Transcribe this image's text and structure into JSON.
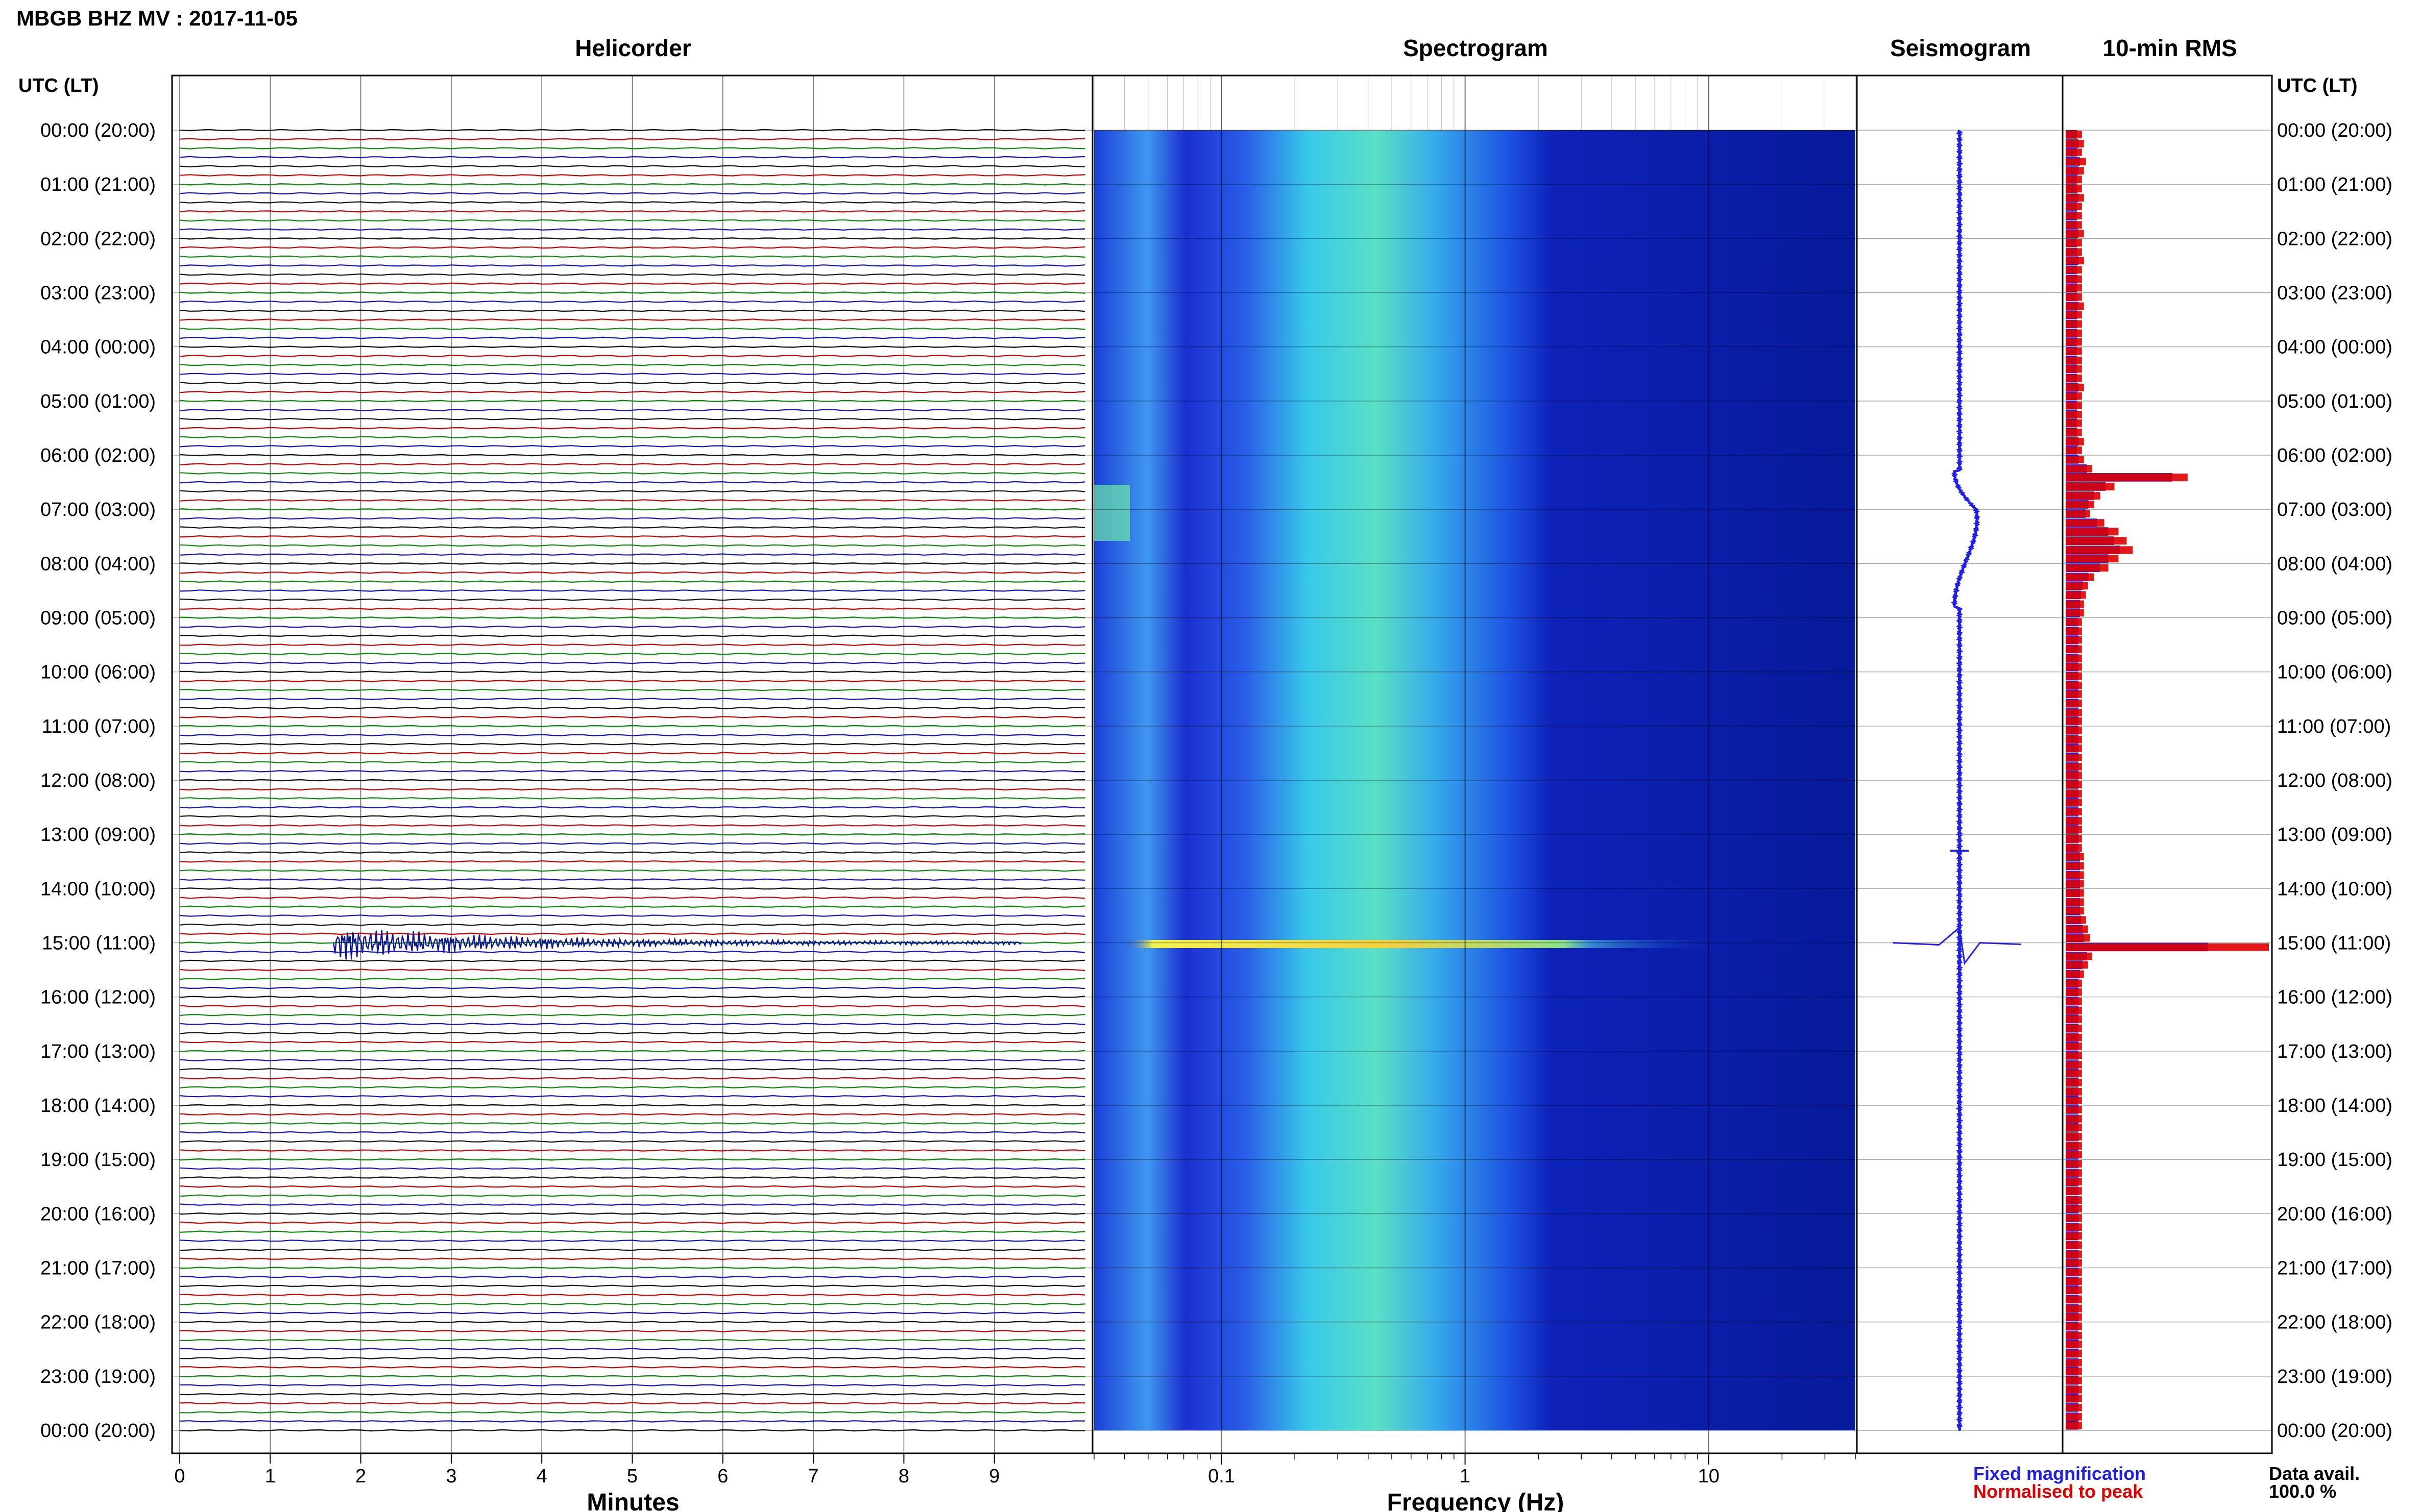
{
  "title": "MBGB BHZ MV : 2017-11-05",
  "panels": {
    "helicorder": "Helicorder",
    "spectrogram": "Spectrogram",
    "seismogram": "Seismogram",
    "rms": "10-min RMS"
  },
  "axis_labels": {
    "time_header_left": "UTC (LT)",
    "time_header_right": "UTC (LT)",
    "helicorder_x": "Minutes",
    "spectrogram_x": "Frequency (Hz)"
  },
  "time_labels": [
    "00:00 (20:00)",
    "01:00 (21:00)",
    "02:00 (22:00)",
    "03:00 (23:00)",
    "04:00 (00:00)",
    "05:00 (01:00)",
    "06:00 (02:00)",
    "07:00 (03:00)",
    "08:00 (04:00)",
    "09:00 (05:00)",
    "10:00 (06:00)",
    "11:00 (07:00)",
    "12:00 (08:00)",
    "13:00 (09:00)",
    "14:00 (10:00)",
    "15:00 (11:00)",
    "16:00 (12:00)",
    "17:00 (13:00)",
    "18:00 (14:00)",
    "19:00 (15:00)",
    "20:00 (16:00)",
    "21:00 (17:00)",
    "22:00 (18:00)",
    "23:00 (19:00)",
    "00:00 (20:00)"
  ],
  "legend": {
    "fixed": "Fixed magnification",
    "normalised": "Normalised to peak",
    "avail_label": "Data avail.",
    "avail_value": "100.0 %"
  },
  "colors": {
    "fixed": "#1f1fe6",
    "normalised": "#e00000",
    "helicorder_traces": [
      "#111111",
      "#cc0000",
      "#0a8a0a",
      "#1111cc"
    ]
  },
  "chart_data": [
    {
      "type": "line",
      "name": "helicorder",
      "xlabel": "Minutes",
      "x_ticks": [
        0,
        1,
        2,
        3,
        4,
        5,
        6,
        7,
        8,
        9
      ],
      "xlim": [
        0,
        10
      ],
      "rows_per_hour": 6,
      "event": {
        "hour": 15.0,
        "start_minute": 1.7,
        "end_minute": 9.3
      }
    },
    {
      "type": "heatmap",
      "name": "spectrogram",
      "xlabel": "Frequency (Hz)",
      "x_scale": "log",
      "xlim": [
        0.03,
        40
      ],
      "x_ticks": [
        0.1,
        1,
        10
      ],
      "hot_bands": [
        {
          "hour": 15.0,
          "fmin": 0.05,
          "fmax": 10
        }
      ]
    },
    {
      "type": "line",
      "name": "seismogram",
      "features": [
        {
          "hour": 6.3,
          "type": "offset"
        },
        {
          "hour": 13.3,
          "type": "spike"
        },
        {
          "hour": 15.0,
          "type": "burst"
        }
      ]
    },
    {
      "type": "bar",
      "name": "10-min RMS",
      "x": [
        0,
        0.17,
        0.33,
        0.5,
        0.67,
        0.83,
        1,
        1.17,
        1.33,
        1.5,
        1.67,
        1.83,
        2,
        2.17,
        2.33,
        2.5,
        2.67,
        2.83,
        3,
        3.17,
        3.33,
        3.5,
        3.67,
        3.83,
        4,
        4.17,
        4.33,
        4.5,
        4.67,
        4.83,
        5,
        5.17,
        5.33,
        5.5,
        5.67,
        5.83,
        6,
        6.17,
        6.33,
        6.5,
        6.67,
        6.83,
        7,
        7.17,
        7.33,
        7.5,
        7.67,
        7.83,
        8,
        8.17,
        8.33,
        8.5,
        8.67,
        8.83,
        9,
        9.17,
        9.33,
        9.5,
        9.67,
        9.83,
        10,
        10.17,
        10.33,
        10.5,
        10.67,
        10.83,
        11,
        11.17,
        11.33,
        11.5,
        11.67,
        11.83,
        12,
        12.17,
        12.33,
        12.5,
        12.67,
        12.83,
        13,
        13.17,
        13.33,
        13.5,
        13.67,
        13.83,
        14,
        14.17,
        14.33,
        14.5,
        14.67,
        14.83,
        15,
        15.17,
        15.33,
        15.5,
        15.67,
        15.83,
        16,
        16.17,
        16.33,
        16.5,
        16.67,
        16.83,
        17,
        17.17,
        17.33,
        17.5,
        17.67,
        17.83,
        18,
        18.17,
        18.33,
        18.5,
        18.67,
        18.83,
        19,
        19.17,
        19.33,
        19.5,
        19.67,
        19.83,
        20,
        20.17,
        20.33,
        20.5,
        20.67,
        20.83,
        21,
        21.17,
        21.33,
        21.5,
        21.67,
        21.83,
        22,
        22.17,
        22.33,
        22.5,
        22.67,
        22.83,
        23,
        23.17,
        23.33,
        23.5,
        23.67,
        23.83
      ],
      "series": [
        {
          "name": "Fixed magnification",
          "values": [
            0.08,
            0.09,
            0.08,
            0.1,
            0.09,
            0.08,
            0.08,
            0.09,
            0.08,
            0.08,
            0.08,
            0.09,
            0.08,
            0.08,
            0.09,
            0.08,
            0.08,
            0.08,
            0.08,
            0.09,
            0.08,
            0.08,
            0.08,
            0.08,
            0.08,
            0.08,
            0.08,
            0.08,
            0.09,
            0.08,
            0.08,
            0.08,
            0.08,
            0.08,
            0.09,
            0.08,
            0.09,
            0.15,
            0.75,
            0.28,
            0.2,
            0.16,
            0.14,
            0.22,
            0.3,
            0.34,
            0.38,
            0.3,
            0.24,
            0.16,
            0.12,
            0.11,
            0.1,
            0.1,
            0.09,
            0.09,
            0.09,
            0.09,
            0.09,
            0.09,
            0.09,
            0.09,
            0.09,
            0.09,
            0.09,
            0.09,
            0.09,
            0.09,
            0.09,
            0.09,
            0.09,
            0.09,
            0.09,
            0.09,
            0.09,
            0.09,
            0.09,
            0.09,
            0.09,
            0.09,
            0.1,
            0.1,
            0.1,
            0.1,
            0.1,
            0.1,
            0.1,
            0.11,
            0.12,
            0.13,
            1.0,
            0.15,
            0.12,
            0.1,
            0.09,
            0.09,
            0.09,
            0.09,
            0.09,
            0.09,
            0.09,
            0.09,
            0.09,
            0.09,
            0.09,
            0.09,
            0.09,
            0.09,
            0.09,
            0.09,
            0.09,
            0.09,
            0.09,
            0.09,
            0.09,
            0.09,
            0.09,
            0.09,
            0.09,
            0.09,
            0.09,
            0.09,
            0.09,
            0.09,
            0.09,
            0.09,
            0.09,
            0.09,
            0.09,
            0.09,
            0.09,
            0.09,
            0.09,
            0.09,
            0.09,
            0.09,
            0.09,
            0.09,
            0.09,
            0.09,
            0.09,
            0.09,
            0.09,
            0.09
          ]
        },
        {
          "name": "Normalised to peak",
          "values": [
            0.08,
            0.09,
            0.08,
            0.1,
            0.09,
            0.08,
            0.08,
            0.09,
            0.08,
            0.08,
            0.08,
            0.09,
            0.08,
            0.08,
            0.09,
            0.08,
            0.08,
            0.08,
            0.08,
            0.09,
            0.08,
            0.08,
            0.08,
            0.08,
            0.08,
            0.08,
            0.08,
            0.08,
            0.09,
            0.08,
            0.08,
            0.08,
            0.08,
            0.08,
            0.09,
            0.08,
            0.09,
            0.13,
            0.6,
            0.24,
            0.17,
            0.14,
            0.12,
            0.19,
            0.26,
            0.3,
            0.33,
            0.26,
            0.21,
            0.14,
            0.11,
            0.1,
            0.09,
            0.09,
            0.08,
            0.08,
            0.08,
            0.08,
            0.08,
            0.08,
            0.08,
            0.08,
            0.08,
            0.08,
            0.08,
            0.08,
            0.08,
            0.08,
            0.08,
            0.08,
            0.08,
            0.08,
            0.08,
            0.08,
            0.08,
            0.08,
            0.08,
            0.08,
            0.08,
            0.08,
            0.09,
            0.09,
            0.09,
            0.09,
            0.09,
            0.09,
            0.09,
            0.1,
            0.11,
            0.12,
            1.0,
            0.13,
            0.11,
            0.09,
            0.08,
            0.08,
            0.08,
            0.08,
            0.08,
            0.08,
            0.08,
            0.08,
            0.08,
            0.08,
            0.08,
            0.08,
            0.08,
            0.08,
            0.08,
            0.08,
            0.08,
            0.08,
            0.08,
            0.08,
            0.08,
            0.08,
            0.08,
            0.08,
            0.08,
            0.08,
            0.08,
            0.08,
            0.08,
            0.08,
            0.08,
            0.08,
            0.08,
            0.08,
            0.08,
            0.08,
            0.08,
            0.08,
            0.08,
            0.08,
            0.08,
            0.08,
            0.08,
            0.08,
            0.08,
            0.08,
            0.08,
            0.08,
            0.08,
            0.08
          ]
        }
      ]
    }
  ]
}
